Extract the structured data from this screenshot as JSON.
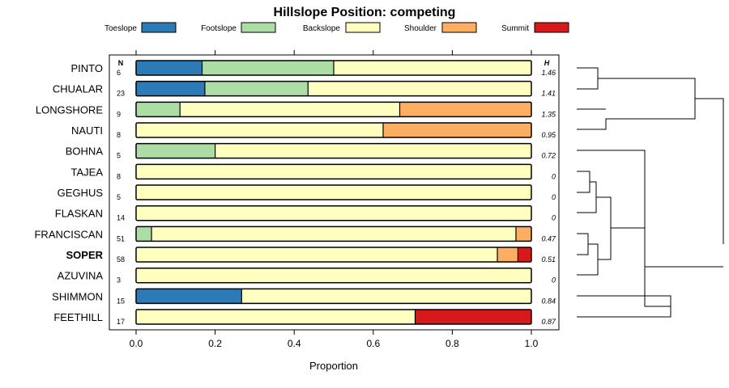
{
  "chart_data": {
    "type": "bar",
    "title": "Hillslope Position: competing",
    "xlabel": "Proportion",
    "ylabel": "",
    "xlim": [
      0,
      1
    ],
    "x_ticks": [
      "0.0",
      "0.2",
      "0.4",
      "0.6",
      "0.8",
      "1.0"
    ],
    "n_header": "N",
    "h_header": "H",
    "highlighted_series": "SOPER",
    "legend_position": "top",
    "legend": [
      {
        "name": "Toeslope",
        "color": "#2C7BB6"
      },
      {
        "name": "Footslope",
        "color": "#ABDDA4"
      },
      {
        "name": "Backslope",
        "color": "#FFFFBF"
      },
      {
        "name": "Shoulder",
        "color": "#FDAE61"
      },
      {
        "name": "Summit",
        "color": "#D7191C"
      }
    ],
    "rows": [
      {
        "label": "PINTO",
        "n": "6",
        "h": "1.46",
        "values": [
          0.167,
          0.333,
          0.5,
          0,
          0
        ]
      },
      {
        "label": "CHUALAR",
        "n": "23",
        "h": "1.41",
        "values": [
          0.174,
          0.261,
          0.565,
          0,
          0
        ]
      },
      {
        "label": "LONGSHORE",
        "n": "9",
        "h": "1.35",
        "values": [
          0,
          0.111,
          0.556,
          0.333,
          0
        ]
      },
      {
        "label": "NAUTI",
        "n": "8",
        "h": "0.95",
        "values": [
          0,
          0,
          0.625,
          0.375,
          0
        ]
      },
      {
        "label": "BOHNA",
        "n": "5",
        "h": "0.72",
        "values": [
          0,
          0.2,
          0.8,
          0,
          0
        ]
      },
      {
        "label": "TAJEA",
        "n": "8",
        "h": "0",
        "values": [
          0,
          0,
          1,
          0,
          0
        ]
      },
      {
        "label": "GEGHUS",
        "n": "5",
        "h": "0",
        "values": [
          0,
          0,
          1,
          0,
          0
        ]
      },
      {
        "label": "FLASKAN",
        "n": "14",
        "h": "0",
        "values": [
          0,
          0,
          1,
          0,
          0
        ]
      },
      {
        "label": "FRANCISCAN",
        "n": "51",
        "h": "0.47",
        "values": [
          0,
          0.039,
          0.922,
          0.039,
          0
        ]
      },
      {
        "label": "SOPER",
        "n": "58",
        "h": "0.51",
        "values": [
          0,
          0,
          0.914,
          0.052,
          0.034
        ]
      },
      {
        "label": "AZUVINA",
        "n": "3",
        "h": "0",
        "values": [
          0,
          0,
          1,
          0,
          0
        ]
      },
      {
        "label": "SHIMMON",
        "n": "15",
        "h": "0.84",
        "values": [
          0.267,
          0,
          0.733,
          0,
          0
        ]
      },
      {
        "label": "FEETHILL",
        "n": "17",
        "h": "0.87",
        "values": [
          0,
          0,
          0.706,
          0,
          0.294
        ]
      }
    ]
  }
}
